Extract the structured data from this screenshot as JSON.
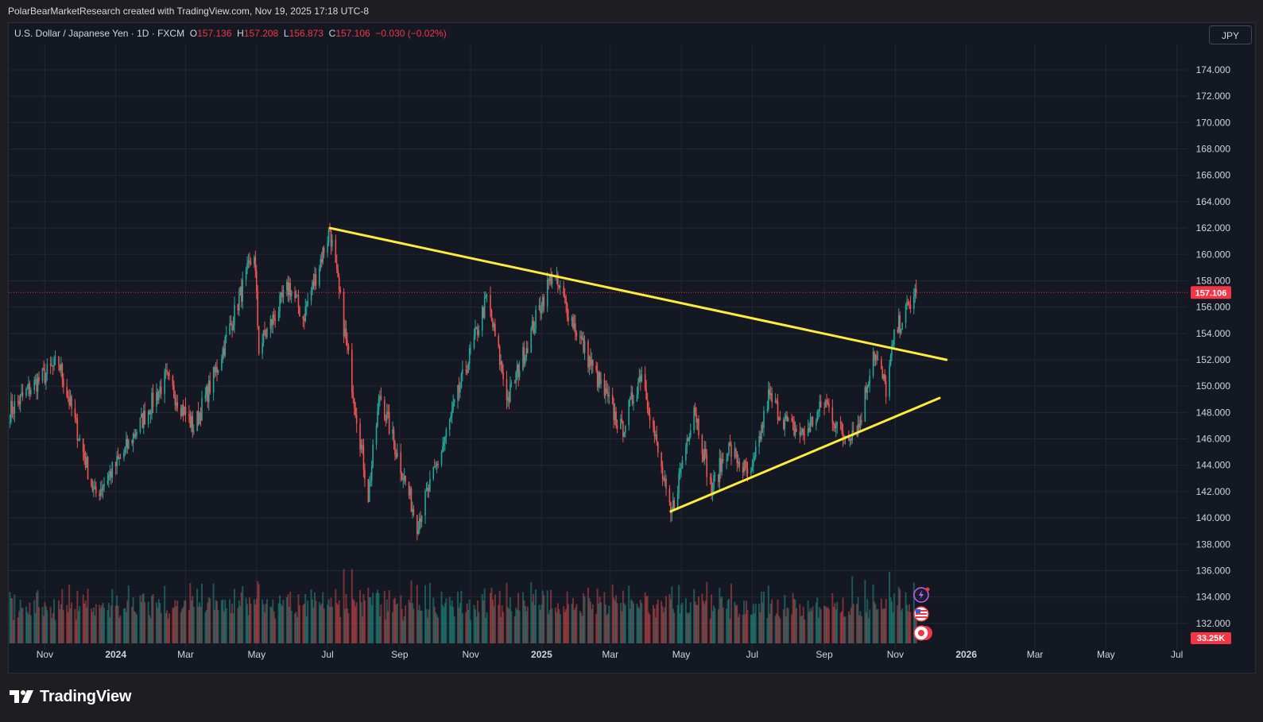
{
  "attribution": "PolarBearMarketResearch created with TradingView.com, Nov 19, 2025 17:18 UTC-8",
  "legend": {
    "symbol": "U.S. Dollar / Japanese Yen · 1D · FXCM",
    "o_label": "O",
    "o_val": "157.136",
    "h_label": "H",
    "h_val": "157.208",
    "l_label": "L",
    "l_val": "156.873",
    "c_label": "C",
    "c_val": "157.106",
    "change": "−0.030 (−0.02%)"
  },
  "currency_button": "JPY",
  "footer_brand": "TradingView",
  "colors": {
    "up": "#26a69a",
    "down": "#ef5350",
    "trendline": "#ffeb3b",
    "price_tag": "#f23645",
    "background": "#141823",
    "grid": "#232733"
  },
  "chart_data": {
    "type": "candlestick",
    "title": "",
    "ylim": [
      131,
      175.5
    ],
    "y_ticks": [
      "174.000",
      "172.000",
      "170.000",
      "168.000",
      "166.000",
      "164.000",
      "162.000",
      "160.000",
      "158.000",
      "156.000",
      "154.000",
      "152.000",
      "150.000",
      "148.000",
      "146.000",
      "144.000",
      "142.000",
      "140.000",
      "138.000",
      "136.000",
      "134.000",
      "132.000"
    ],
    "x_ticks": [
      "Nov",
      "2024",
      "Mar",
      "May",
      "Jul",
      "Sep",
      "Nov",
      "2025",
      "Mar",
      "May",
      "Jul",
      "Sep",
      "Nov",
      "2026",
      "Mar",
      "May",
      "Jul"
    ],
    "last_price_label": "157.106",
    "last_price": 157.106,
    "volume_label": "33.25K",
    "price_path": [
      [
        "2023-10-01",
        148.0
      ],
      [
        "2023-10-20",
        149.9
      ],
      [
        "2023-11-13",
        151.8
      ],
      [
        "2023-12-14",
        141.7
      ],
      [
        "2024-01-05",
        144.5
      ],
      [
        "2024-02-13",
        150.6
      ],
      [
        "2024-03-08",
        146.8
      ],
      [
        "2024-03-28",
        151.4
      ],
      [
        "2024-04-29",
        160.2
      ],
      [
        "2024-05-03",
        152.9
      ],
      [
        "2024-05-29",
        157.6
      ],
      [
        "2024-06-10",
        155.2
      ],
      [
        "2024-07-03",
        161.9
      ],
      [
        "2024-08-05",
        141.7
      ],
      [
        "2024-08-15",
        149.4
      ],
      [
        "2024-09-16",
        139.6
      ],
      [
        "2024-10-01",
        143.4
      ],
      [
        "2024-11-15",
        156.7
      ],
      [
        "2024-12-03",
        149.0
      ],
      [
        "2025-01-10",
        158.6
      ],
      [
        "2025-02-14",
        151.3
      ],
      [
        "2025-03-11",
        146.6
      ],
      [
        "2025-03-28",
        151.2
      ],
      [
        "2025-04-22",
        140.0
      ],
      [
        "2025-05-12",
        148.6
      ],
      [
        "2025-05-27",
        142.1
      ],
      [
        "2025-06-10",
        145.4
      ],
      [
        "2025-06-30",
        143.0
      ],
      [
        "2025-07-15",
        149.2
      ],
      [
        "2025-08-01",
        147.0
      ],
      [
        "2025-08-14",
        146.3
      ],
      [
        "2025-09-02",
        148.8
      ],
      [
        "2025-09-17",
        146.2
      ],
      [
        "2025-10-01",
        147.0
      ],
      [
        "2025-10-13",
        152.7
      ],
      [
        "2025-10-24",
        149.8
      ],
      [
        "2025-11-01",
        154.1
      ],
      [
        "2025-11-19",
        157.106
      ]
    ],
    "trendlines": [
      {
        "name": "resistance",
        "from": [
          "2024-07-03",
          162.0
        ],
        "to": [
          "2025-12-15",
          152.0
        ]
      },
      {
        "name": "support",
        "from": [
          "2025-04-22",
          140.5
        ],
        "to": [
          "2025-12-09",
          149.1
        ]
      }
    ]
  }
}
